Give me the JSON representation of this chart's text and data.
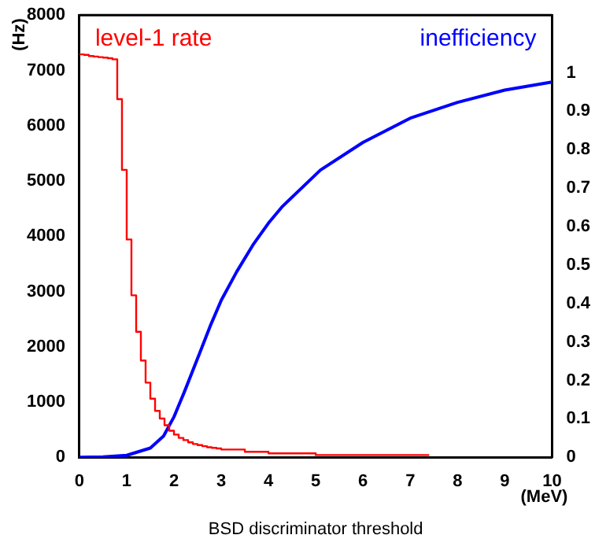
{
  "chart_data": {
    "type": "histogram",
    "xlabel": "BSD discriminator threshold",
    "ylabel": "(Hz)",
    "annotations": [
      "(MeV)"
    ],
    "bins": [
      0,
      0.1,
      0.2,
      0.3,
      0.4,
      0.5,
      0.6,
      0.7,
      0.8,
      0.9,
      1.0,
      1.1,
      1.2,
      1.3,
      1.4,
      1.5,
      1.6,
      1.7,
      1.8,
      1.9,
      2.0,
      2.1,
      2.2,
      2.3,
      2.4,
      2.5,
      2.6,
      2.7,
      2.8,
      2.9,
      3.0,
      3.5,
      4.0,
      5.0,
      7.4
    ],
    "series": [
      {
        "name": "level-1 rate",
        "color": "#ff0000",
        "values": [
          7290,
          7280,
          7260,
          7250,
          7240,
          7230,
          7220,
          7200,
          6480,
          5200,
          3940,
          2930,
          2270,
          1750,
          1350,
          1060,
          840,
          700,
          580,
          480,
          410,
          350,
          310,
          270,
          240,
          220,
          200,
          180,
          170,
          160,
          140,
          100,
          70,
          40
        ]
      },
      {
        "name": "inefficiency",
        "color": "#0000ff",
        "type": "line",
        "axis": "y2",
        "x": [
          0,
          0.5,
          1.0,
          1.5,
          1.78,
          2.0,
          2.22,
          2.5,
          2.78,
          3.0,
          3.33,
          3.67,
          4.0,
          4.3,
          5.1,
          6.0,
          7.0,
          8.0,
          9.0,
          10.0
        ],
        "values": [
          0,
          0.001,
          0.005,
          0.024,
          0.055,
          0.105,
          0.17,
          0.257,
          0.345,
          0.408,
          0.483,
          0.552,
          0.609,
          0.653,
          0.747,
          0.819,
          0.882,
          0.923,
          0.955,
          0.976
        ]
      }
    ],
    "xlim": [
      0,
      10
    ],
    "xticks": [
      0,
      1,
      2,
      3,
      4,
      5,
      6,
      7,
      8,
      9,
      10
    ],
    "ylim": [
      0,
      8000
    ],
    "yticks": [
      0,
      1000,
      2000,
      3000,
      4000,
      5000,
      6000,
      7000,
      8000
    ],
    "y2lim": [
      0,
      1.15
    ],
    "y2ticks": [
      0,
      0.1,
      0.2,
      0.3,
      0.4,
      0.5,
      0.6,
      0.7,
      0.8,
      0.9,
      1
    ],
    "grid": false,
    "legend": false
  }
}
